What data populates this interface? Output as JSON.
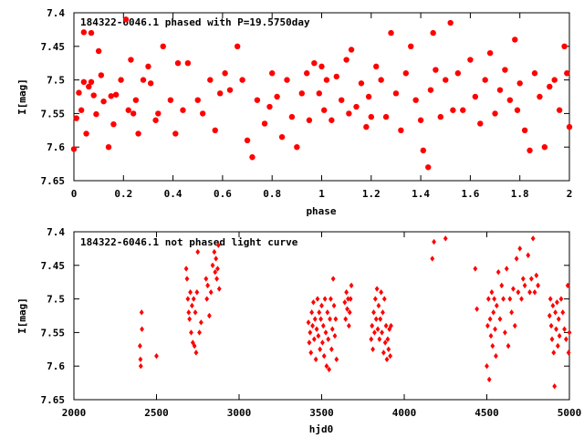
{
  "colors": {
    "points": "#ff0000",
    "axes": "#000000",
    "background": "#ffffff"
  },
  "chart_data": [
    {
      "type": "scatter",
      "title": "184322-6046.1 phased with P=19.5750day",
      "xlabel": "phase",
      "ylabel": "I[mag]",
      "xlim": [
        0,
        2
      ],
      "ylim": [
        7.4,
        7.65
      ],
      "y_inverted": true,
      "xticks": [
        "0",
        "0.2",
        "0.4",
        "0.6",
        "0.8",
        "1",
        "1.2",
        "1.4",
        "1.6",
        "1.8",
        "2"
      ],
      "xtick_values": [
        0,
        0.2,
        0.4,
        0.6,
        0.8,
        1,
        1.2,
        1.4,
        1.6,
        1.8,
        2
      ],
      "yticks": [
        "7.4",
        "7.45",
        "7.5",
        "7.55",
        "7.6",
        "7.65"
      ],
      "ytick_values": [
        7.4,
        7.45,
        7.5,
        7.55,
        7.6,
        7.65
      ],
      "marker": "filled-circle",
      "points": [
        [
          0.0,
          7.603
        ],
        [
          0.01,
          7.557
        ],
        [
          0.02,
          7.519
        ],
        [
          0.03,
          7.545
        ],
        [
          0.04,
          7.503
        ],
        [
          0.04,
          7.429
        ],
        [
          0.05,
          7.58
        ],
        [
          0.06,
          7.51
        ],
        [
          0.07,
          7.503
        ],
        [
          0.07,
          7.43
        ],
        [
          0.08,
          7.523
        ],
        [
          0.09,
          7.551
        ],
        [
          0.1,
          7.457
        ],
        [
          0.11,
          7.493
        ],
        [
          0.12,
          7.532
        ],
        [
          0.14,
          7.6
        ],
        [
          0.15,
          7.524
        ],
        [
          0.16,
          7.566
        ],
        [
          0.17,
          7.522
        ],
        [
          0.19,
          7.5
        ],
        [
          0.21,
          7.41
        ],
        [
          0.22,
          7.545
        ],
        [
          0.23,
          7.47
        ],
        [
          0.24,
          7.55
        ],
        [
          0.25,
          7.53
        ],
        [
          0.26,
          7.58
        ],
        [
          0.28,
          7.5
        ],
        [
          0.3,
          7.48
        ],
        [
          0.31,
          7.505
        ],
        [
          0.33,
          7.56
        ],
        [
          0.34,
          7.55
        ],
        [
          0.36,
          7.45
        ],
        [
          0.39,
          7.53
        ],
        [
          0.41,
          7.58
        ],
        [
          0.42,
          7.475
        ],
        [
          0.44,
          7.545
        ],
        [
          0.46,
          7.475
        ],
        [
          0.5,
          7.53
        ],
        [
          0.52,
          7.55
        ],
        [
          0.55,
          7.5
        ],
        [
          0.57,
          7.575
        ],
        [
          0.59,
          7.52
        ],
        [
          0.61,
          7.49
        ],
        [
          0.63,
          7.515
        ],
        [
          0.66,
          7.45
        ],
        [
          0.68,
          7.5
        ],
        [
          0.7,
          7.59
        ],
        [
          0.72,
          7.615
        ],
        [
          0.74,
          7.53
        ],
        [
          0.77,
          7.565
        ],
        [
          0.79,
          7.54
        ],
        [
          0.8,
          7.49
        ],
        [
          0.82,
          7.525
        ],
        [
          0.84,
          7.585
        ],
        [
          0.86,
          7.5
        ],
        [
          0.88,
          7.555
        ],
        [
          0.9,
          7.6
        ],
        [
          0.92,
          7.52
        ],
        [
          0.94,
          7.49
        ],
        [
          0.95,
          7.56
        ],
        [
          0.97,
          7.475
        ],
        [
          0.99,
          7.52
        ],
        [
          1.0,
          7.48
        ],
        [
          1.01,
          7.545
        ],
        [
          1.02,
          7.5
        ],
        [
          1.04,
          7.56
        ],
        [
          1.06,
          7.495
        ],
        [
          1.08,
          7.53
        ],
        [
          1.1,
          7.47
        ],
        [
          1.11,
          7.55
        ],
        [
          1.12,
          7.455
        ],
        [
          1.14,
          7.54
        ],
        [
          1.16,
          7.505
        ],
        [
          1.18,
          7.57
        ],
        [
          1.19,
          7.525
        ],
        [
          1.2,
          7.555
        ],
        [
          1.22,
          7.48
        ],
        [
          1.24,
          7.5
        ],
        [
          1.26,
          7.555
        ],
        [
          1.28,
          7.43
        ],
        [
          1.3,
          7.52
        ],
        [
          1.32,
          7.575
        ],
        [
          1.34,
          7.49
        ],
        [
          1.36,
          7.45
        ],
        [
          1.38,
          7.53
        ],
        [
          1.4,
          7.56
        ],
        [
          1.41,
          7.605
        ],
        [
          1.43,
          7.63
        ],
        [
          1.44,
          7.515
        ],
        [
          1.45,
          7.43
        ],
        [
          1.46,
          7.485
        ],
        [
          1.48,
          7.555
        ],
        [
          1.5,
          7.5
        ],
        [
          1.52,
          7.415
        ],
        [
          1.53,
          7.545
        ],
        [
          1.55,
          7.49
        ],
        [
          1.57,
          7.545
        ],
        [
          1.6,
          7.47
        ],
        [
          1.62,
          7.525
        ],
        [
          1.64,
          7.565
        ],
        [
          1.66,
          7.5
        ],
        [
          1.68,
          7.46
        ],
        [
          1.7,
          7.55
        ],
        [
          1.72,
          7.515
        ],
        [
          1.74,
          7.485
        ],
        [
          1.76,
          7.53
        ],
        [
          1.78,
          7.44
        ],
        [
          1.79,
          7.545
        ],
        [
          1.8,
          7.505
        ],
        [
          1.82,
          7.575
        ],
        [
          1.84,
          7.605
        ],
        [
          1.86,
          7.49
        ],
        [
          1.88,
          7.525
        ],
        [
          1.9,
          7.6
        ],
        [
          1.92,
          7.51
        ],
        [
          1.94,
          7.5
        ],
        [
          1.96,
          7.545
        ],
        [
          1.98,
          7.45
        ],
        [
          1.99,
          7.49
        ],
        [
          2.0,
          7.57
        ]
      ]
    },
    {
      "type": "scatter",
      "title": "184322-6046.1 not phased light curve",
      "xlabel": "hjd0",
      "ylabel": "I[mag]",
      "xlim": [
        2000,
        5000
      ],
      "ylim": [
        7.4,
        7.65
      ],
      "y_inverted": true,
      "xticks": [
        "2000",
        "2500",
        "3000",
        "3500",
        "4000",
        "4500",
        "5000"
      ],
      "xtick_values": [
        2000,
        2500,
        3000,
        3500,
        4000,
        4500,
        5000
      ],
      "yticks": [
        "7.4",
        "7.45",
        "7.5",
        "7.55",
        "7.6",
        "7.65"
      ],
      "ytick_values": [
        7.4,
        7.45,
        7.5,
        7.55,
        7.6,
        7.65
      ],
      "marker": "small-diamond",
      "points": [
        [
          2400,
          7.57
        ],
        [
          2403,
          7.59
        ],
        [
          2405,
          7.6
        ],
        [
          2410,
          7.52
        ],
        [
          2412,
          7.545
        ],
        [
          2500,
          7.585
        ],
        [
          2680,
          7.455
        ],
        [
          2685,
          7.47
        ],
        [
          2690,
          7.5
        ],
        [
          2695,
          7.52
        ],
        [
          2700,
          7.53
        ],
        [
          2705,
          7.49
        ],
        [
          2710,
          7.55
        ],
        [
          2715,
          7.51
        ],
        [
          2720,
          7.565
        ],
        [
          2725,
          7.5
        ],
        [
          2730,
          7.57
        ],
        [
          2735,
          7.52
        ],
        [
          2740,
          7.58
        ],
        [
          2745,
          7.49
        ],
        [
          2750,
          7.43
        ],
        [
          2760,
          7.55
        ],
        [
          2770,
          7.535
        ],
        [
          2800,
          7.47
        ],
        [
          2805,
          7.5
        ],
        [
          2810,
          7.48
        ],
        [
          2820,
          7.525
        ],
        [
          2830,
          7.49
        ],
        [
          2840,
          7.45
        ],
        [
          2850,
          7.43
        ],
        [
          2855,
          7.46
        ],
        [
          2860,
          7.44
        ],
        [
          2865,
          7.47
        ],
        [
          2870,
          7.455
        ],
        [
          2875,
          7.42
        ],
        [
          2880,
          7.485
        ],
        [
          3420,
          7.535
        ],
        [
          3425,
          7.565
        ],
        [
          3430,
          7.55
        ],
        [
          3435,
          7.58
        ],
        [
          3440,
          7.52
        ],
        [
          3445,
          7.54
        ],
        [
          3450,
          7.505
        ],
        [
          3455,
          7.56
        ],
        [
          3460,
          7.53
        ],
        [
          3465,
          7.59
        ],
        [
          3470,
          7.545
        ],
        [
          3475,
          7.5
        ],
        [
          3480,
          7.555
        ],
        [
          3485,
          7.52
        ],
        [
          3490,
          7.575
        ],
        [
          3495,
          7.53
        ],
        [
          3500,
          7.51
        ],
        [
          3505,
          7.565
        ],
        [
          3510,
          7.54
        ],
        [
          3515,
          7.585
        ],
        [
          3520,
          7.5
        ],
        [
          3525,
          7.55
        ],
        [
          3530,
          7.6
        ],
        [
          3535,
          7.52
        ],
        [
          3540,
          7.56
        ],
        [
          3545,
          7.605
        ],
        [
          3550,
          7.53
        ],
        [
          3555,
          7.5
        ],
        [
          3560,
          7.575
        ],
        [
          3565,
          7.545
        ],
        [
          3570,
          7.47
        ],
        [
          3575,
          7.51
        ],
        [
          3580,
          7.555
        ],
        [
          3585,
          7.53
        ],
        [
          3590,
          7.59
        ],
        [
          3640,
          7.505
        ],
        [
          3645,
          7.53
        ],
        [
          3650,
          7.49
        ],
        [
          3655,
          7.515
        ],
        [
          3660,
          7.5
        ],
        [
          3665,
          7.54
        ],
        [
          3670,
          7.52
        ],
        [
          3675,
          7.5
        ],
        [
          3680,
          7.48
        ],
        [
          3800,
          7.56
        ],
        [
          3805,
          7.54
        ],
        [
          3810,
          7.575
        ],
        [
          3815,
          7.52
        ],
        [
          3820,
          7.55
        ],
        [
          3825,
          7.5
        ],
        [
          3830,
          7.53
        ],
        [
          3835,
          7.485
        ],
        [
          3840,
          7.545
        ],
        [
          3845,
          7.51
        ],
        [
          3850,
          7.56
        ],
        [
          3855,
          7.53
        ],
        [
          3860,
          7.49
        ],
        [
          3865,
          7.55
        ],
        [
          3870,
          7.52
        ],
        [
          3875,
          7.58
        ],
        [
          3880,
          7.5
        ],
        [
          3885,
          7.565
        ],
        [
          3890,
          7.54
        ],
        [
          3895,
          7.59
        ],
        [
          3900,
          7.56
        ],
        [
          3905,
          7.575
        ],
        [
          3910,
          7.545
        ],
        [
          3915,
          7.585
        ],
        [
          3920,
          7.54
        ],
        [
          4170,
          7.44
        ],
        [
          4180,
          7.415
        ],
        [
          4250,
          7.41
        ],
        [
          4430,
          7.455
        ],
        [
          4440,
          7.515
        ],
        [
          4500,
          7.6
        ],
        [
          4505,
          7.54
        ],
        [
          4510,
          7.5
        ],
        [
          4515,
          7.62
        ],
        [
          4520,
          7.53
        ],
        [
          4525,
          7.555
        ],
        [
          4530,
          7.49
        ],
        [
          4535,
          7.57
        ],
        [
          4540,
          7.52
        ],
        [
          4545,
          7.5
        ],
        [
          4550,
          7.545
        ],
        [
          4555,
          7.585
        ],
        [
          4560,
          7.51
        ],
        [
          4570,
          7.46
        ],
        [
          4580,
          7.53
        ],
        [
          4590,
          7.48
        ],
        [
          4600,
          7.5
        ],
        [
          4610,
          7.55
        ],
        [
          4620,
          7.455
        ],
        [
          4630,
          7.57
        ],
        [
          4640,
          7.5
        ],
        [
          4650,
          7.52
        ],
        [
          4660,
          7.485
        ],
        [
          4670,
          7.54
        ],
        [
          4680,
          7.44
        ],
        [
          4690,
          7.49
        ],
        [
          4700,
          7.425
        ],
        [
          4710,
          7.5
        ],
        [
          4720,
          7.47
        ],
        [
          4730,
          7.48
        ],
        [
          4750,
          7.435
        ],
        [
          4760,
          7.49
        ],
        [
          4770,
          7.47
        ],
        [
          4780,
          7.41
        ],
        [
          4790,
          7.49
        ],
        [
          4800,
          7.465
        ],
        [
          4810,
          7.48
        ],
        [
          4880,
          7.525
        ],
        [
          4885,
          7.5
        ],
        [
          4890,
          7.54
        ],
        [
          4895,
          7.56
        ],
        [
          4900,
          7.51
        ],
        [
          4905,
          7.58
        ],
        [
          4910,
          7.63
        ],
        [
          4915,
          7.52
        ],
        [
          4920,
          7.545
        ],
        [
          4925,
          7.505
        ],
        [
          4930,
          7.57
        ],
        [
          4935,
          7.53
        ],
        [
          4940,
          7.555
        ],
        [
          4950,
          7.5
        ],
        [
          4960,
          7.52
        ],
        [
          4970,
          7.545
        ],
        [
          4980,
          7.56
        ],
        [
          4990,
          7.48
        ],
        [
          4995,
          7.58
        ],
        [
          5000,
          7.55
        ]
      ]
    }
  ]
}
